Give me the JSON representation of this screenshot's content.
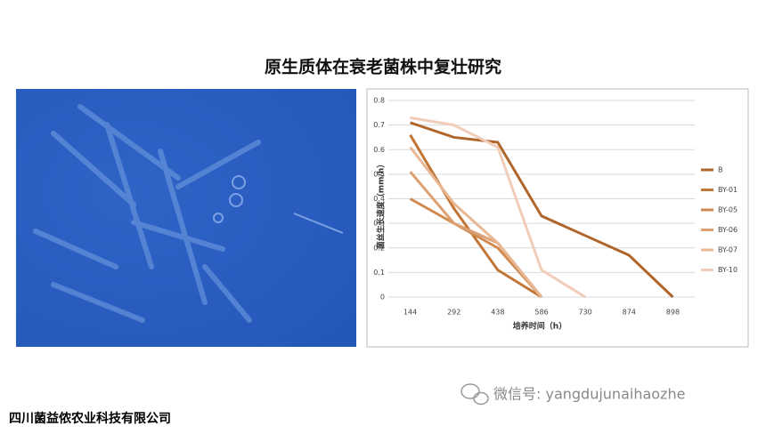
{
  "title": "原生质体在衰老菌株中复壮研究",
  "company": "四川菌益侬农业科技有限公司",
  "watermark": "微信号: yangdujunaihaozhe",
  "chart_data": {
    "type": "line",
    "x_label": "培养时间（h）",
    "y_label": "菌丝生长速度（mm/h）",
    "categories": [
      "144",
      "292",
      "438",
      "586",
      "730",
      "874",
      "898"
    ],
    "ylim": [
      0,
      0.8
    ],
    "yticks": [
      0,
      0.1,
      0.2,
      0.3,
      0.4,
      0.5,
      0.6,
      0.7,
      0.8
    ],
    "grid": true,
    "legend": "right",
    "series": [
      {
        "name": "B",
        "color": "#b0652b",
        "values": [
          0.71,
          0.65,
          0.63,
          0.33,
          0.25,
          0.17,
          0
        ]
      },
      {
        "name": "BY-01",
        "color": "#c27636",
        "values": [
          0.66,
          0.36,
          0.11,
          0,
          null,
          null,
          null
        ]
      },
      {
        "name": "BY-05",
        "color": "#cf8a4f",
        "values": [
          0.4,
          0.3,
          0.2,
          0,
          null,
          null,
          null
        ]
      },
      {
        "name": "BY-06",
        "color": "#dca072",
        "values": [
          0.51,
          0.3,
          0.22,
          0,
          null,
          null,
          null
        ]
      },
      {
        "name": "BY-07",
        "color": "#e8b794",
        "values": [
          0.61,
          0.38,
          0.22,
          0,
          null,
          null,
          null
        ]
      },
      {
        "name": "BY-10",
        "color": "#f1cdb9",
        "values": [
          0.73,
          0.7,
          0.61,
          0.11,
          0,
          null,
          null
        ]
      }
    ]
  }
}
